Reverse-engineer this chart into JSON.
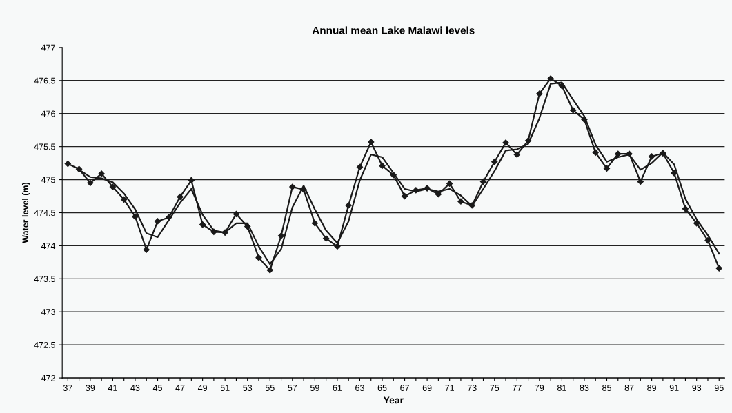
{
  "chart_data": {
    "type": "line",
    "title": "Annual mean Lake Malawi levels",
    "xlabel": "Year",
    "ylabel": "Water level (m)",
    "categories": [
      "37",
      null,
      "39",
      null,
      "41",
      null,
      "43",
      null,
      "45",
      null,
      "47",
      null,
      "49",
      null,
      "51",
      null,
      "53",
      null,
      "55",
      null,
      "57",
      null,
      "59",
      null,
      "61",
      null,
      "63",
      null,
      "65",
      null,
      "67",
      null,
      "69",
      null,
      "71",
      null,
      "73",
      null,
      "75",
      null,
      "77",
      null,
      "79",
      null,
      "81",
      null,
      "83",
      null,
      "85",
      null,
      "87",
      null,
      "89",
      null,
      "91",
      null,
      "93",
      null,
      "95"
    ],
    "series": [
      {
        "color": "#1a1a1a",
        "marker": "diamond",
        "values": [
          475.24,
          475.16,
          474.95,
          475.09,
          474.89,
          474.7,
          474.44,
          473.94,
          474.37,
          474.43,
          474.74,
          474.99,
          474.32,
          474.21,
          474.2,
          474.48,
          474.29,
          473.82,
          473.63,
          474.15,
          474.89,
          474.85,
          474.34,
          474.11,
          473.99,
          474.61,
          475.19,
          475.57,
          475.21,
          475.07,
          474.75,
          474.84,
          474.87,
          474.78,
          474.94,
          474.67,
          474.61,
          474.97,
          475.27,
          475.56,
          475.38,
          475.59,
          476.3,
          476.53,
          476.42,
          476.05,
          475.91,
          475.41,
          475.17,
          475.39,
          475.39,
          474.97,
          475.35,
          475.4,
          475.1,
          474.56,
          474.34,
          474.08,
          473.66
        ]
      },
      {
        "color": "#1a1a1a",
        "marker": "none",
        "values": [
          null,
          475.15,
          475.04,
          475.02,
          474.96,
          474.79,
          474.55,
          474.19,
          474.13,
          474.39,
          474.65,
          474.86,
          474.47,
          474.23,
          474.2,
          474.34,
          474.34,
          473.99,
          473.72,
          473.95,
          474.58,
          474.91,
          474.55,
          474.23,
          474.04,
          474.37,
          474.99,
          475.38,
          475.34,
          475.1,
          474.86,
          474.82,
          474.86,
          474.82,
          474.86,
          474.76,
          474.6,
          474.86,
          475.13,
          475.44,
          475.46,
          475.54,
          475.93,
          476.45,
          476.47,
          476.21,
          475.96,
          475.53,
          475.27,
          475.34,
          475.38,
          475.15,
          475.25,
          475.41,
          475.23,
          474.71,
          474.4,
          474.16,
          473.88
        ]
      }
    ],
    "ylim": [
      472,
      477
    ],
    "yticks": [
      472,
      472.5,
      473,
      473.5,
      474,
      474.5,
      475,
      475.5,
      476,
      476.5,
      477
    ],
    "grid": "y",
    "line_style": "solid"
  }
}
